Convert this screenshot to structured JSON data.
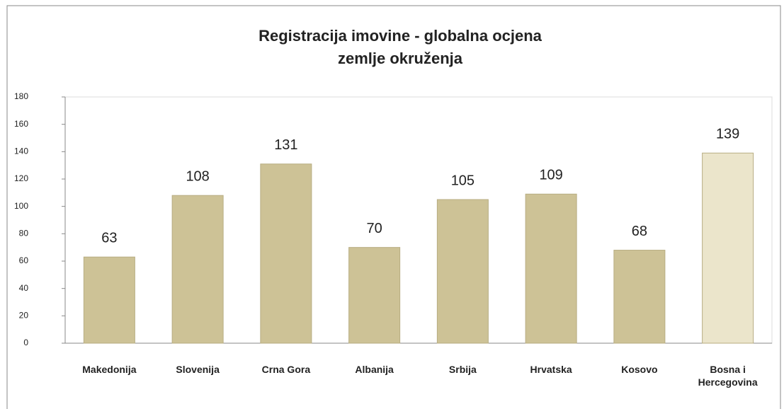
{
  "chart_data": {
    "type": "bar",
    "title": [
      "Registracija imovine - globalna ocjena",
      "zemlje okruženja"
    ],
    "categories": [
      "Makedonija",
      "Slovenija",
      "Crna Gora",
      "Albanija",
      "Srbija",
      "Hrvatska",
      "Kosovo",
      "Bosna i Hercegovina"
    ],
    "values": [
      63,
      108,
      131,
      70,
      105,
      109,
      68,
      139
    ],
    "colors": [
      "#cdc296",
      "#cdc296",
      "#cdc296",
      "#cdc296",
      "#cdc296",
      "#cdc296",
      "#cdc296",
      "#ebe5cb"
    ],
    "ylim": [
      0,
      180
    ],
    "yticks": [
      0,
      20,
      40,
      60,
      80,
      100,
      120,
      140,
      160,
      180
    ],
    "grid": false
  }
}
